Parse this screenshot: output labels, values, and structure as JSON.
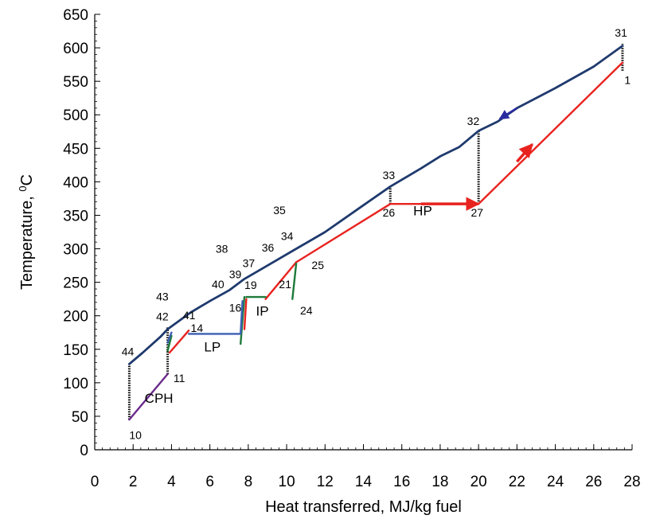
{
  "chart_data": {
    "type": "line",
    "xlabel": "Heat transferred, MJ/kg fuel",
    "ylabel_main": "Temperature, ",
    "ylabel_sup": "0",
    "ylabel_unit": "C",
    "xlim": [
      0,
      28
    ],
    "ylim": [
      0,
      650
    ],
    "xticks": [
      0,
      2,
      4,
      6,
      8,
      10,
      12,
      14,
      16,
      18,
      20,
      22,
      24,
      26,
      28
    ],
    "yticks": [
      0,
      50,
      100,
      150,
      200,
      250,
      300,
      350,
      400,
      450,
      500,
      550,
      600,
      650
    ],
    "grid": false,
    "colors": {
      "gas": "#1f3a6e",
      "steam_hp": "#e8231f",
      "evaporator_ip": "#1e7a3a",
      "lp": "#3a5fb4",
      "cph": "#6a2a8a",
      "divider": "#000000",
      "arrow": "#2a2aa0"
    },
    "series": [
      {
        "role": "gas",
        "x": [
          1.8,
          2.5,
          3.4,
          3.8,
          5.0,
          6.0,
          7.0,
          7.8,
          9.0,
          10.5,
          12.0,
          14.0,
          15.4,
          17.0,
          18.0,
          19.0,
          20.0,
          21.0,
          22.0,
          24.0,
          26.0,
          27.5
        ],
        "y": [
          128,
          145,
          168,
          180,
          205,
          222,
          238,
          255,
          275,
          300,
          325,
          365,
          393,
          420,
          438,
          452,
          476,
          490,
          510,
          540,
          572,
          603
        ]
      },
      {
        "role": "steam_hp",
        "x": [
          10.5,
          15.4,
          20.0,
          27.5
        ],
        "y": [
          280,
          367,
          367,
          578
        ]
      },
      {
        "role": "steam_hp",
        "x": [
          8.9,
          10.5
        ],
        "y": [
          225,
          280
        ]
      },
      {
        "role": "steam_hp",
        "x": [
          3.9,
          4.9
        ],
        "y": [
          145,
          178
        ]
      },
      {
        "role": "steam_hp",
        "x": [
          7.8,
          7.9
        ],
        "y": [
          180,
          225
        ]
      },
      {
        "role": "evaporator_ip",
        "x": [
          7.9,
          8.9
        ],
        "y": [
          228,
          228
        ]
      },
      {
        "role": "evaporator_ip",
        "x": [
          7.6,
          7.8
        ],
        "y": [
          158,
          228
        ]
      },
      {
        "role": "evaporator_ip",
        "x": [
          10.3,
          10.5
        ],
        "y": [
          225,
          278
        ]
      },
      {
        "role": "evaporator_ip",
        "x": [
          3.8,
          4.0
        ],
        "y": [
          148,
          170
        ]
      },
      {
        "role": "lp",
        "x": [
          4.9,
          7.6,
          7.7
        ],
        "y": [
          173,
          173,
          222
        ]
      },
      {
        "role": "lp",
        "x": [
          3.8,
          4.0
        ],
        "y": [
          160,
          175
        ]
      },
      {
        "role": "cph",
        "x": [
          1.8,
          3.8
        ],
        "y": [
          45,
          113
        ]
      }
    ],
    "dividers": [
      {
        "x": 1.8,
        "y1": 45,
        "y2": 128
      },
      {
        "x": 3.8,
        "y1": 113,
        "y2": 183
      },
      {
        "x": 15.4,
        "y1": 367,
        "y2": 393
      },
      {
        "x": 20.0,
        "y1": 367,
        "y2": 476
      },
      {
        "x": 27.5,
        "y1": 566,
        "y2": 606
      }
    ],
    "arrows": [
      {
        "role": "steam_hp",
        "from": [
          17.0,
          367
        ],
        "to": [
          20.0,
          367
        ]
      },
      {
        "role": "steam_hp",
        "from": [
          22.0,
          430
        ],
        "to": [
          22.8,
          456
        ]
      },
      {
        "role": "arrow",
        "from": [
          22.0,
          510
        ],
        "to": [
          21.1,
          494
        ]
      }
    ],
    "point_labels": [
      {
        "text": "31",
        "x": 27.1,
        "y": 617
      },
      {
        "text": "1",
        "x": 27.6,
        "y": 546
      },
      {
        "text": "32",
        "x": 19.4,
        "y": 485
      },
      {
        "text": "33",
        "x": 15.0,
        "y": 404
      },
      {
        "text": "26",
        "x": 15.0,
        "y": 348
      },
      {
        "text": "27",
        "x": 19.6,
        "y": 348
      },
      {
        "text": "35",
        "x": 9.3,
        "y": 352
      },
      {
        "text": "34",
        "x": 9.7,
        "y": 313
      },
      {
        "text": "36",
        "x": 8.7,
        "y": 296
      },
      {
        "text": "38",
        "x": 6.3,
        "y": 294
      },
      {
        "text": "37",
        "x": 7.7,
        "y": 273
      },
      {
        "text": "39",
        "x": 7.0,
        "y": 256
      },
      {
        "text": "40",
        "x": 6.1,
        "y": 241
      },
      {
        "text": "19",
        "x": 7.8,
        "y": 240
      },
      {
        "text": "25",
        "x": 11.3,
        "y": 270
      },
      {
        "text": "21",
        "x": 9.6,
        "y": 241
      },
      {
        "text": "16",
        "x": 7.0,
        "y": 206
      },
      {
        "text": "24",
        "x": 10.7,
        "y": 202
      },
      {
        "text": "43",
        "x": 3.2,
        "y": 223
      },
      {
        "text": "41",
        "x": 4.6,
        "y": 195
      },
      {
        "text": "42",
        "x": 3.2,
        "y": 193
      },
      {
        "text": "14",
        "x": 5.0,
        "y": 176
      },
      {
        "text": "44",
        "x": 1.4,
        "y": 141
      },
      {
        "text": "11",
        "x": 4.1,
        "y": 101
      },
      {
        "text": "10",
        "x": 1.8,
        "y": 16
      }
    ],
    "section_labels": [
      {
        "text": "HP",
        "x": 16.6,
        "y": 350
      },
      {
        "text": "IP",
        "x": 8.4,
        "y": 200
      },
      {
        "text": "LP",
        "x": 5.7,
        "y": 147
      },
      {
        "text": "CPH",
        "x": 2.6,
        "y": 70
      }
    ]
  }
}
